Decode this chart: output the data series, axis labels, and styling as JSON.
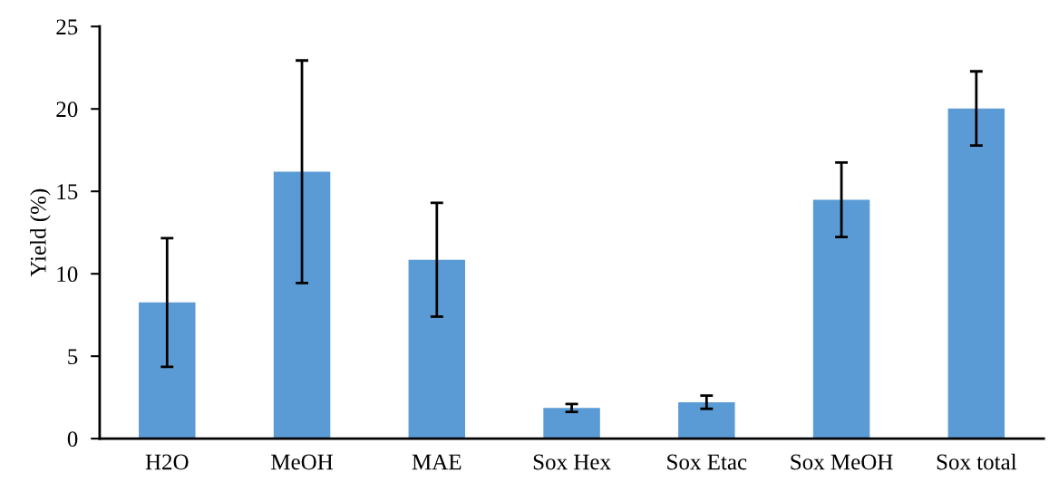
{
  "chart_data": {
    "type": "bar",
    "ylabel": "Yield (%)",
    "categories": [
      "H2O",
      "MeOH",
      "MAE",
      "Sox Hex",
      "Sox Etac",
      "Sox MeOH",
      "Sox total"
    ],
    "values": [
      8.26,
      16.19,
      10.85,
      1.86,
      2.21,
      14.49,
      20.03
    ],
    "errors": [
      3.9,
      6.75,
      3.45,
      0.24,
      0.4,
      2.26,
      2.25
    ],
    "color": "#5b9bd5",
    "ylim": [
      0,
      25
    ],
    "yticks": [
      0,
      5,
      10,
      15,
      20,
      25
    ],
    "grid": false,
    "legend": false
  }
}
